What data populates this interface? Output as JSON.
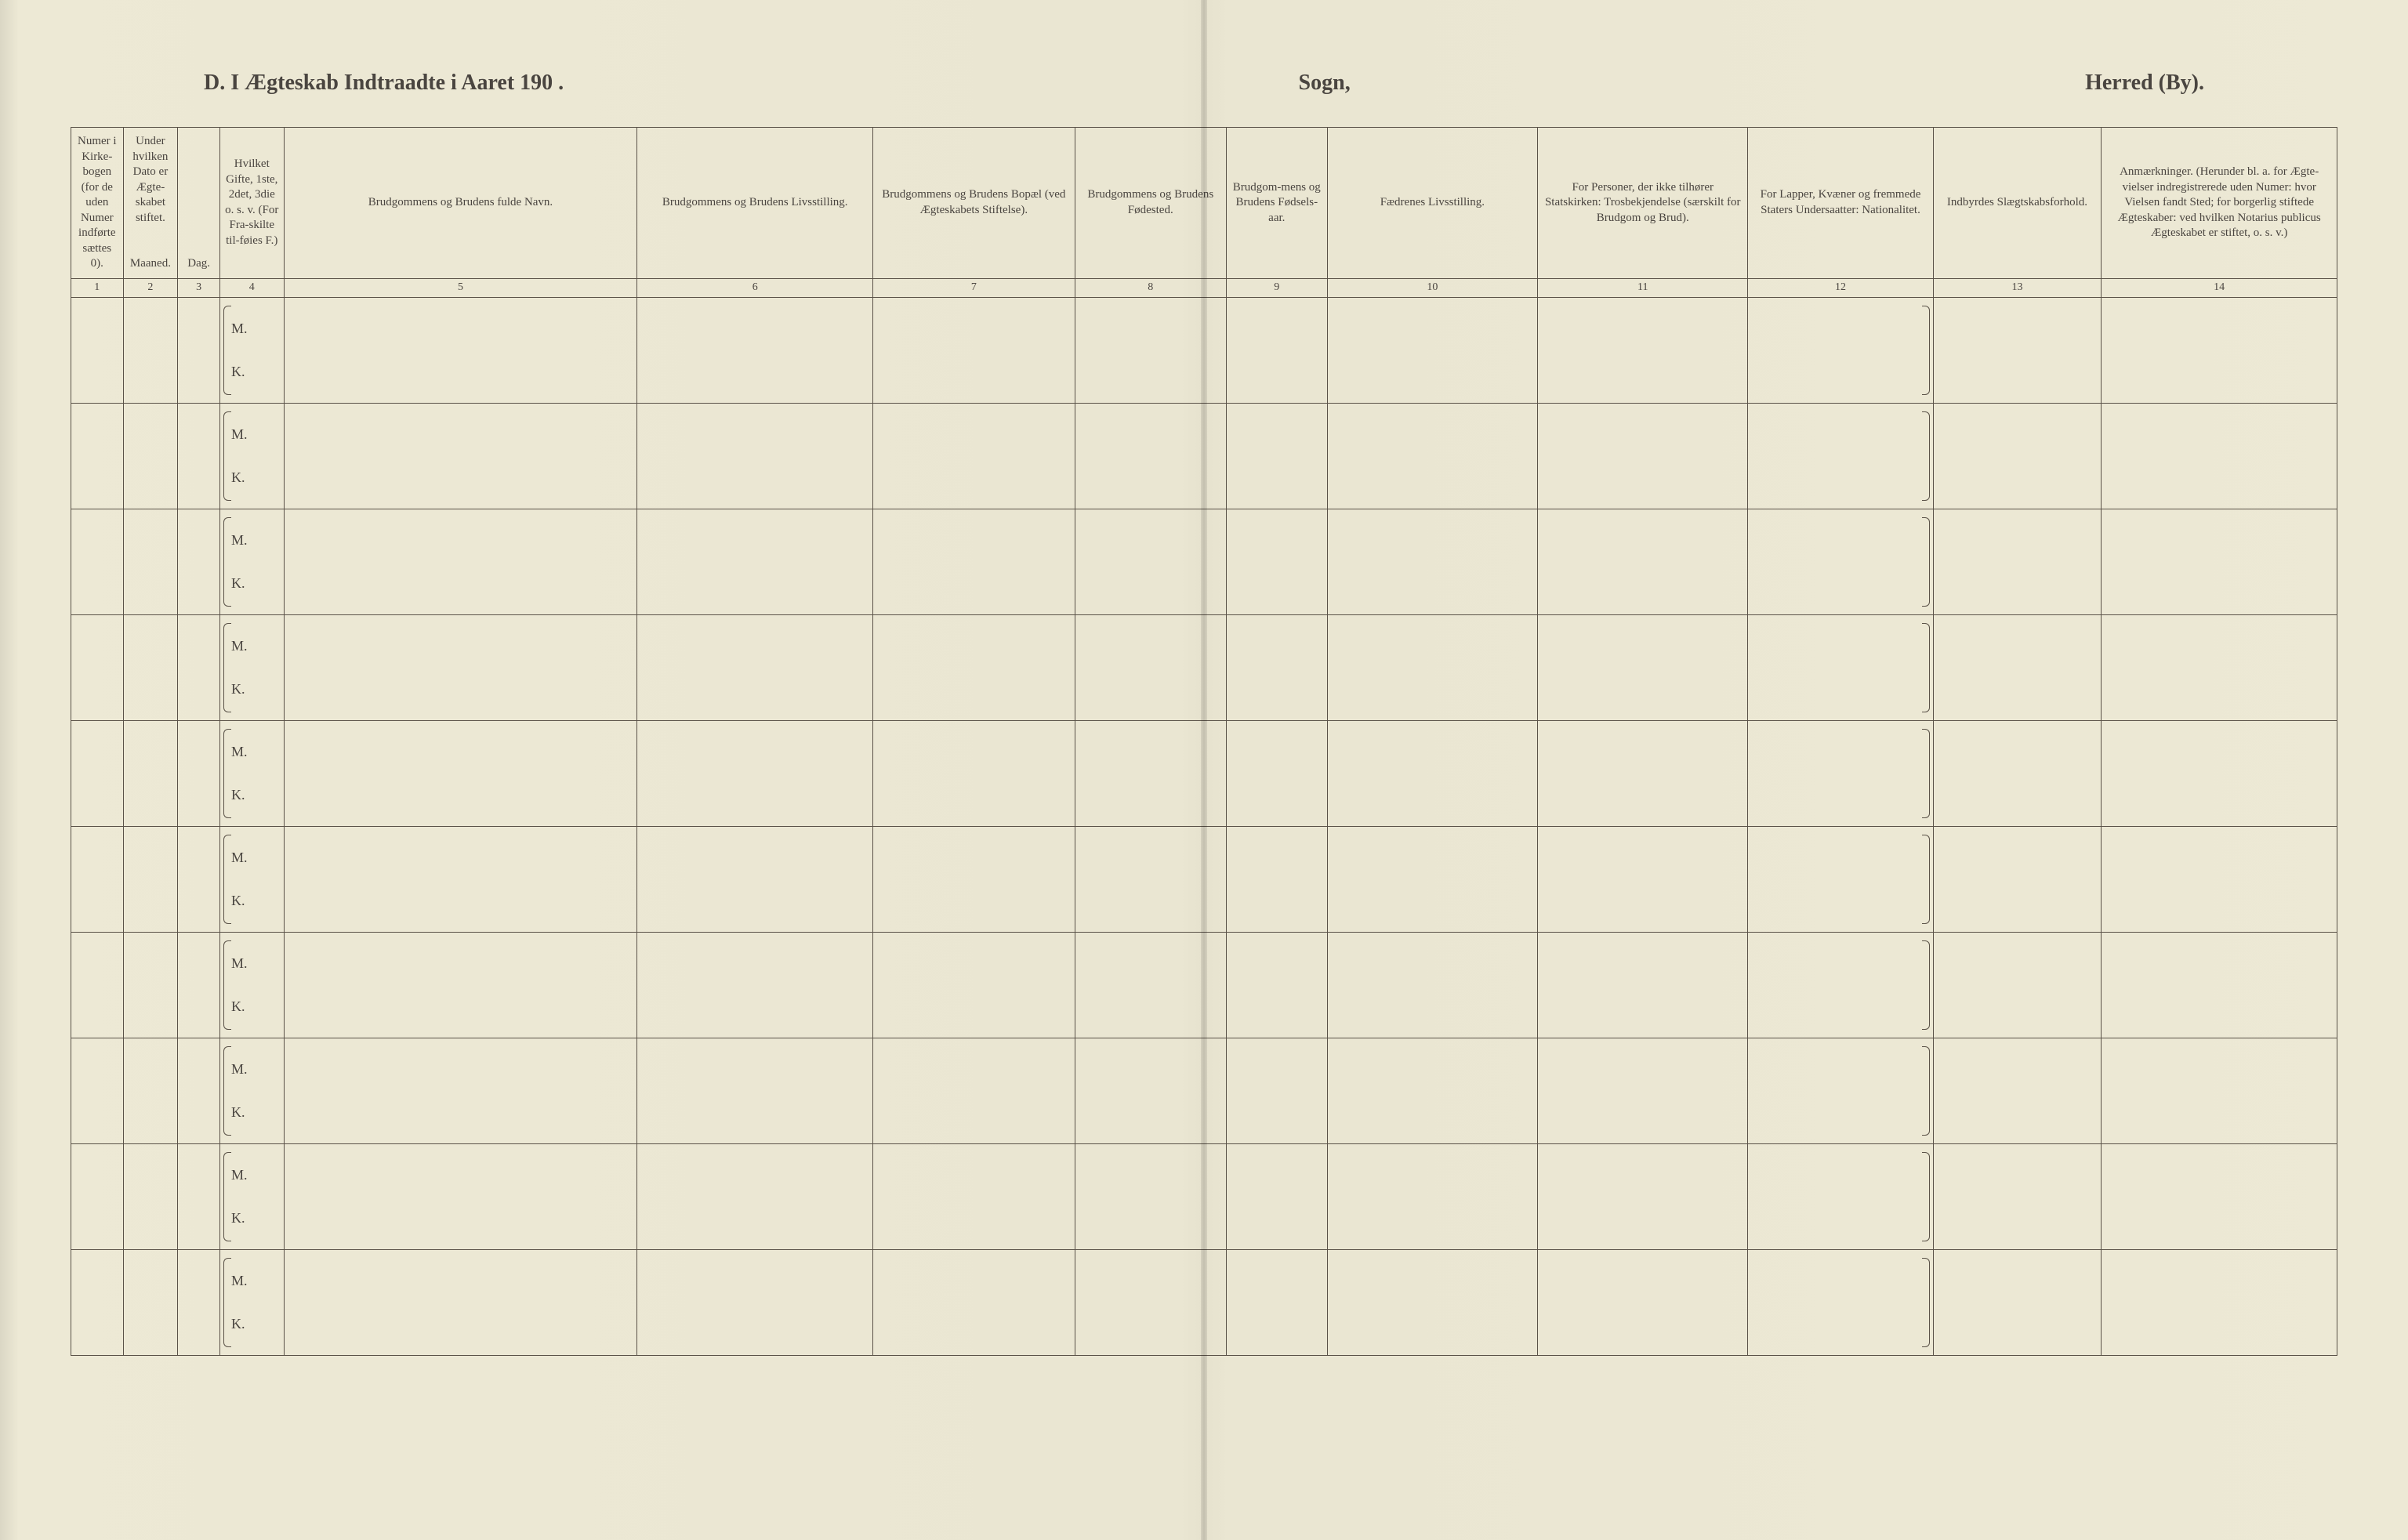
{
  "title": {
    "left": "D.  I Ægteskab Indtraadte i Aaret 190  .",
    "center": "Sogn,",
    "right": "Herred (By)."
  },
  "columns": [
    {
      "num": "1",
      "label": "Numer i Kirke-bogen (for de uden Numer indførte sættes 0)."
    },
    {
      "num": "2",
      "label": "Under hvilken Dato er Ægte-skabet stiftet.",
      "sub1": "Maaned."
    },
    {
      "num": "3",
      "label": "",
      "sub1": "Dag."
    },
    {
      "num": "4",
      "label": "Hvilket Gifte, 1ste, 2det, 3die o. s. v. (For Fra-skilte til-føies F.)"
    },
    {
      "num": "5",
      "label": "Brudgommens og Brudens fulde Navn."
    },
    {
      "num": "6",
      "label": "Brudgommens og Brudens Livsstilling."
    },
    {
      "num": "7",
      "label": "Brudgommens og Brudens Bopæl (ved Ægteskabets Stiftelse)."
    },
    {
      "num": "8",
      "label": "Brudgommens og Brudens Fødested."
    },
    {
      "num": "9",
      "label": "Brudgom-mens og Brudens Fødsels-aar."
    },
    {
      "num": "10",
      "label": "Fædrenes Livsstilling."
    },
    {
      "num": "11",
      "label": "For Personer, der ikke tilhører Statskirken: Trosbekjendelse (særskilt for Brudgom og Brud)."
    },
    {
      "num": "12",
      "label": "For Lapper, Kvæner og fremmede Staters Undersaatter: Nationalitet."
    },
    {
      "num": "13",
      "label": "Indbyrdes Slægtskabsforhold."
    },
    {
      "num": "14",
      "label": "Anmærkninger. (Herunder bl. a. for Ægte-vielser indregistrerede uden Numer: hvor Vielsen fandt Sted; for borgerlig stiftede Ægteskaber: ved hvilken Notarius publicus Ægteskabet er stiftet, o. s. v.)"
    }
  ],
  "mk": {
    "m": "M.",
    "k": "K."
  },
  "row_count": 10,
  "colors": {
    "paper": "#ede9d5",
    "ink": "#4a4540",
    "rule": "#5a5248"
  }
}
